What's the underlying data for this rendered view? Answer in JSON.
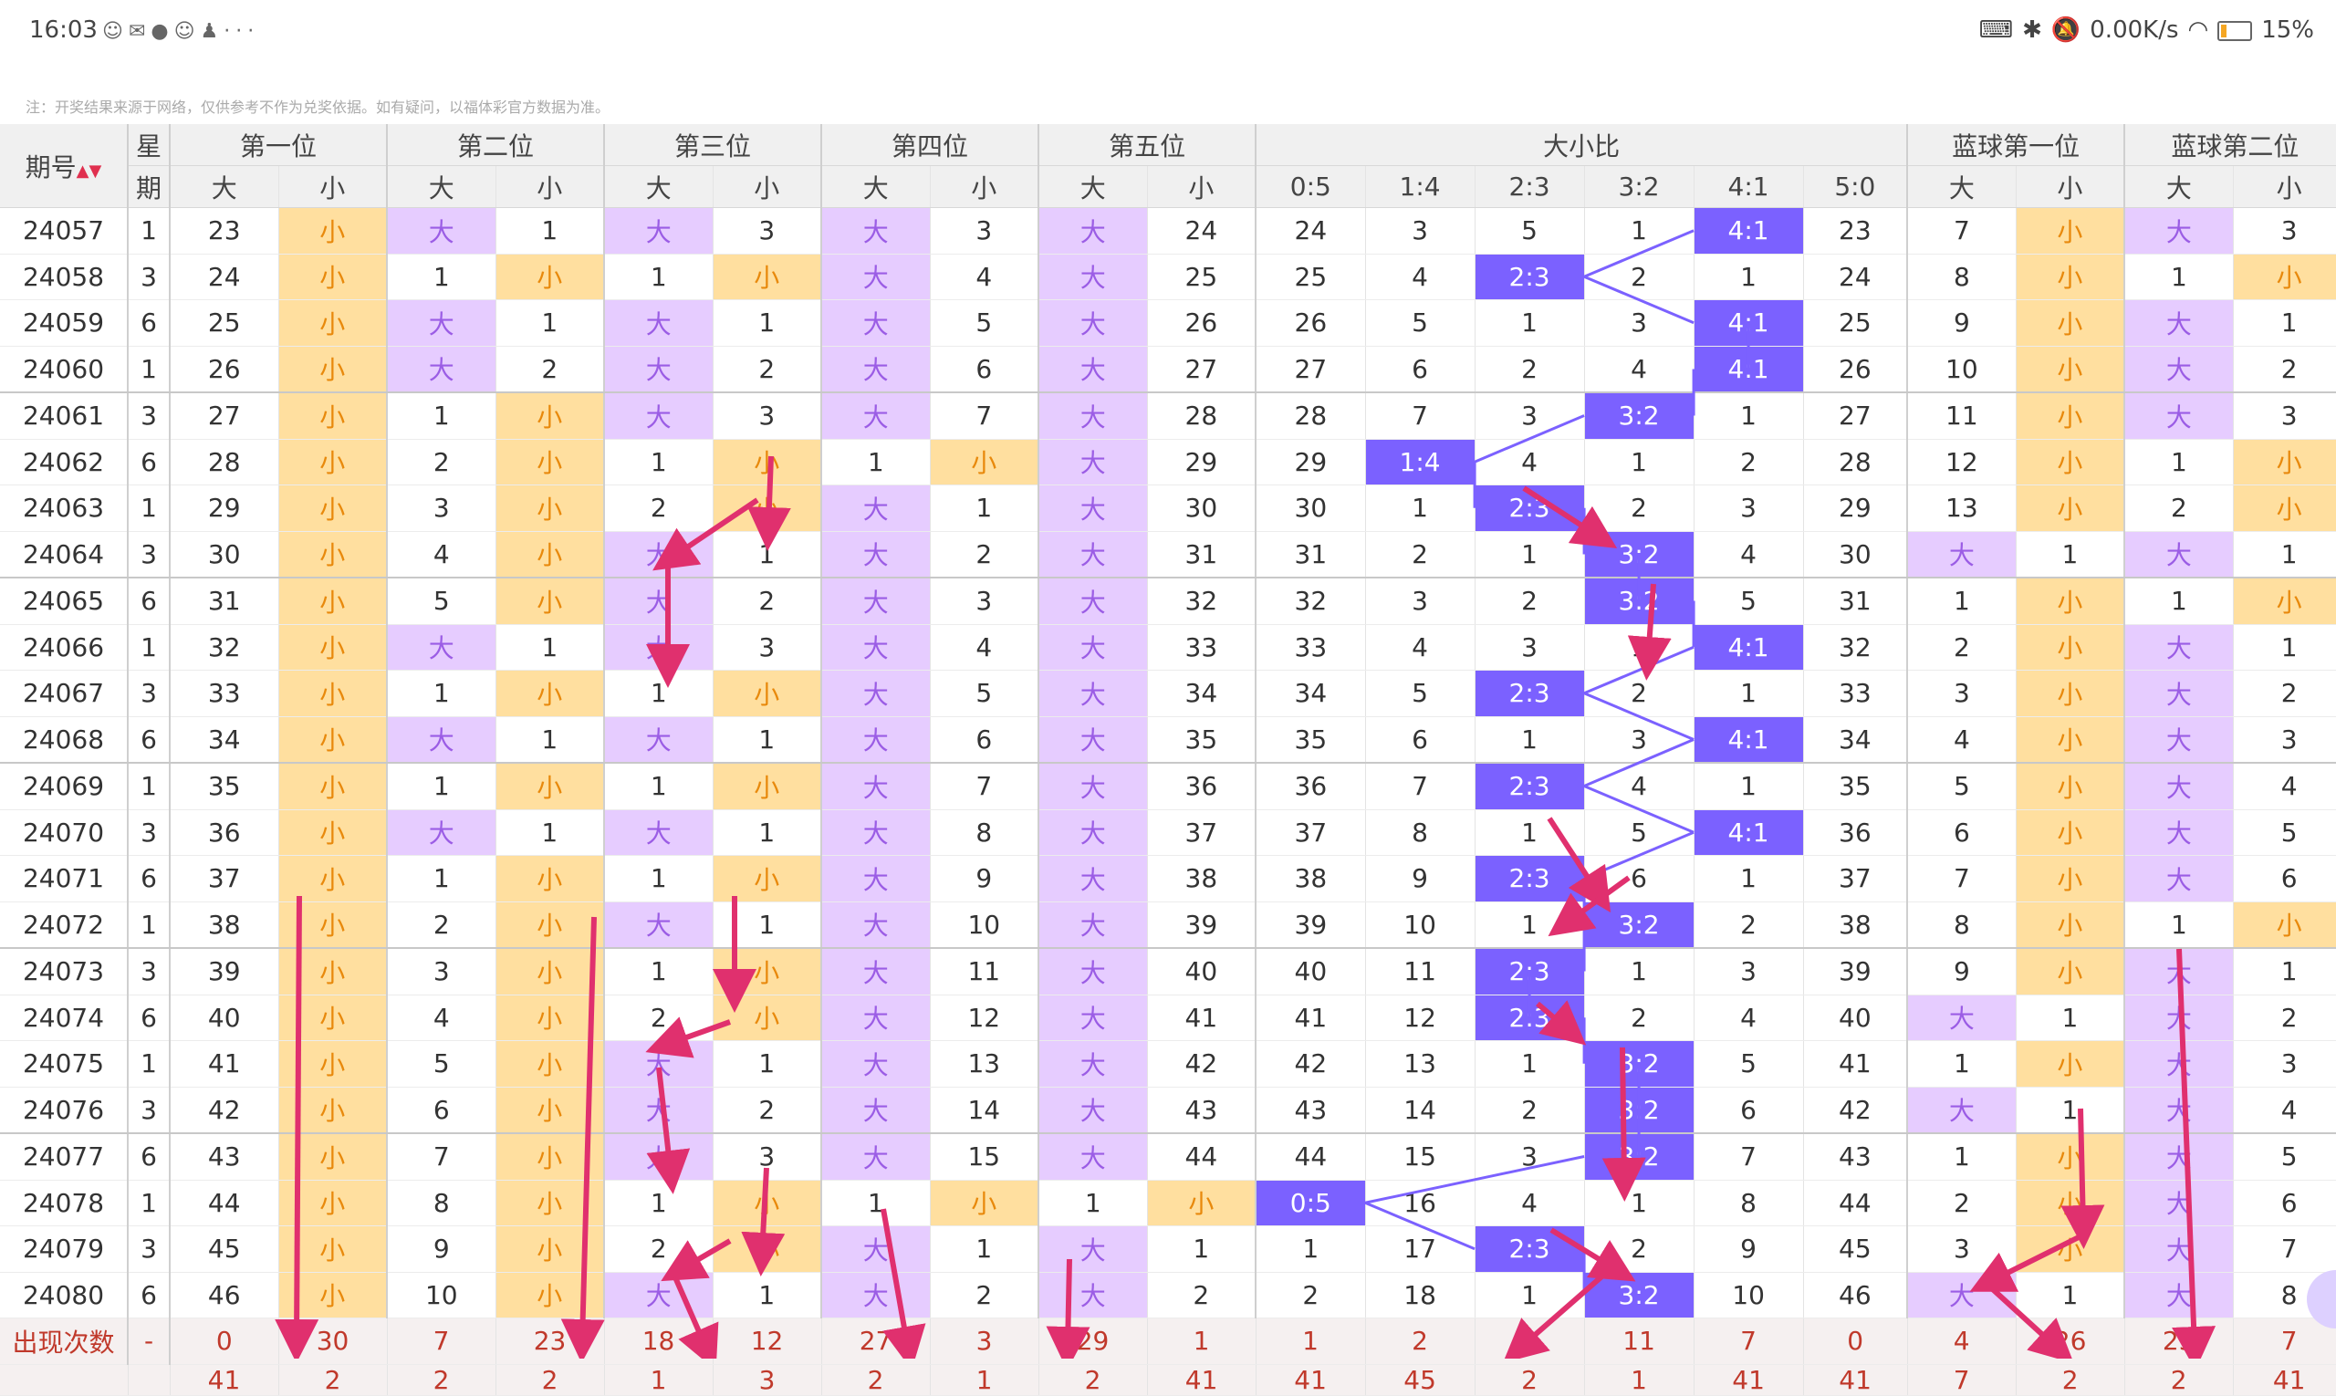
{
  "status": {
    "time": "16:03",
    "icons": [
      "chat-icon",
      "wechat-icon",
      "browser-icon",
      "chat-icon",
      "qq-icon",
      "more-icon"
    ],
    "more": "···",
    "net_speed": "0.00K/s",
    "battery": "15%"
  },
  "note": "注：开奖结果来源于网络，仅供参考不作为兑奖依据。如有疑问，以福体彩官方数据为准。",
  "header": {
    "issue": "期号",
    "week_top": "星",
    "week_bottom": "期",
    "groups": [
      "第一位",
      "第二位",
      "第三位",
      "第四位",
      "第五位",
      "大小比",
      "蓝球第一位",
      "蓝球第二位"
    ],
    "big": "大",
    "small": "小",
    "ratios": [
      "0:5",
      "1:4",
      "2:3",
      "3:2",
      "4:1",
      "5:0"
    ]
  },
  "colors": {
    "big_bg": "#e6ccff",
    "small_bg": "#ffdf9f",
    "ratio_hit": "#7b61ff",
    "arrow": "#e0306e"
  },
  "rows": [
    {
      "issue": "24057",
      "week": "1",
      "p1": [
        "23",
        "小"
      ],
      "p2": [
        "大",
        "1"
      ],
      "p3": [
        "大",
        "3"
      ],
      "p4": [
        "大",
        "3"
      ],
      "p5": [
        "大",
        "24"
      ],
      "ratio": [
        "24",
        "3",
        "5",
        "1",
        "4:1",
        "23"
      ],
      "b1": [
        "7",
        "小"
      ],
      "b2": [
        "大",
        "3"
      ]
    },
    {
      "issue": "24058",
      "week": "3",
      "p1": [
        "24",
        "小"
      ],
      "p2": [
        "1",
        "小"
      ],
      "p3": [
        "1",
        "小"
      ],
      "p4": [
        "大",
        "4"
      ],
      "p5": [
        "大",
        "25"
      ],
      "ratio": [
        "25",
        "4",
        "2:3",
        "2",
        "1",
        "24"
      ],
      "b1": [
        "8",
        "小"
      ],
      "b2": [
        "1",
        "小"
      ]
    },
    {
      "issue": "24059",
      "week": "6",
      "p1": [
        "25",
        "小"
      ],
      "p2": [
        "大",
        "1"
      ],
      "p3": [
        "大",
        "1"
      ],
      "p4": [
        "大",
        "5"
      ],
      "p5": [
        "大",
        "26"
      ],
      "ratio": [
        "26",
        "5",
        "1",
        "3",
        "4:1",
        "25"
      ],
      "b1": [
        "9",
        "小"
      ],
      "b2": [
        "大",
        "1"
      ]
    },
    {
      "issue": "24060",
      "week": "1",
      "p1": [
        "26",
        "小"
      ],
      "p2": [
        "大",
        "2"
      ],
      "p3": [
        "大",
        "2"
      ],
      "p4": [
        "大",
        "6"
      ],
      "p5": [
        "大",
        "27"
      ],
      "ratio": [
        "27",
        "6",
        "2",
        "4",
        "4:1",
        "26"
      ],
      "b1": [
        "10",
        "小"
      ],
      "b2": [
        "大",
        "2"
      ]
    },
    {
      "issue": "24061",
      "week": "3",
      "p1": [
        "27",
        "小"
      ],
      "p2": [
        "1",
        "小"
      ],
      "p3": [
        "大",
        "3"
      ],
      "p4": [
        "大",
        "7"
      ],
      "p5": [
        "大",
        "28"
      ],
      "ratio": [
        "28",
        "7",
        "3",
        "3:2",
        "1",
        "27"
      ],
      "b1": [
        "11",
        "小"
      ],
      "b2": [
        "大",
        "3"
      ]
    },
    {
      "issue": "24062",
      "week": "6",
      "p1": [
        "28",
        "小"
      ],
      "p2": [
        "2",
        "小"
      ],
      "p3": [
        "1",
        "小"
      ],
      "p4": [
        "1",
        "小"
      ],
      "p5": [
        "大",
        "29"
      ],
      "ratio": [
        "29",
        "1:4",
        "4",
        "1",
        "2",
        "28"
      ],
      "b1": [
        "12",
        "小"
      ],
      "b2": [
        "1",
        "小"
      ]
    },
    {
      "issue": "24063",
      "week": "1",
      "p1": [
        "29",
        "小"
      ],
      "p2": [
        "3",
        "小"
      ],
      "p3": [
        "2",
        "小"
      ],
      "p4": [
        "大",
        "1"
      ],
      "p5": [
        "大",
        "30"
      ],
      "ratio": [
        "30",
        "1",
        "2:3",
        "2",
        "3",
        "29"
      ],
      "b1": [
        "13",
        "小"
      ],
      "b2": [
        "2",
        "小"
      ]
    },
    {
      "issue": "24064",
      "week": "3",
      "p1": [
        "30",
        "小"
      ],
      "p2": [
        "4",
        "小"
      ],
      "p3": [
        "大",
        "1"
      ],
      "p4": [
        "大",
        "2"
      ],
      "p5": [
        "大",
        "31"
      ],
      "ratio": [
        "31",
        "2",
        "1",
        "3:2",
        "4",
        "30"
      ],
      "b1": [
        "大",
        "1"
      ],
      "b2": [
        "大",
        "1"
      ]
    },
    {
      "issue": "24065",
      "week": "6",
      "p1": [
        "31",
        "小"
      ],
      "p2": [
        "5",
        "小"
      ],
      "p3": [
        "大",
        "2"
      ],
      "p4": [
        "大",
        "3"
      ],
      "p5": [
        "大",
        "32"
      ],
      "ratio": [
        "32",
        "3",
        "2",
        "3:2",
        "5",
        "31"
      ],
      "b1": [
        "1",
        "小"
      ],
      "b2": [
        "1",
        "小"
      ]
    },
    {
      "issue": "24066",
      "week": "1",
      "p1": [
        "32",
        "小"
      ],
      "p2": [
        "大",
        "1"
      ],
      "p3": [
        "大",
        "3"
      ],
      "p4": [
        "大",
        "4"
      ],
      "p5": [
        "大",
        "33"
      ],
      "ratio": [
        "33",
        "4",
        "3",
        "1",
        "4:1",
        "32"
      ],
      "b1": [
        "2",
        "小"
      ],
      "b2": [
        "大",
        "1"
      ]
    },
    {
      "issue": "24067",
      "week": "3",
      "p1": [
        "33",
        "小"
      ],
      "p2": [
        "1",
        "小"
      ],
      "p3": [
        "1",
        "小"
      ],
      "p4": [
        "大",
        "5"
      ],
      "p5": [
        "大",
        "34"
      ],
      "ratio": [
        "34",
        "5",
        "2:3",
        "2",
        "1",
        "33"
      ],
      "b1": [
        "3",
        "小"
      ],
      "b2": [
        "大",
        "2"
      ]
    },
    {
      "issue": "24068",
      "week": "6",
      "p1": [
        "34",
        "小"
      ],
      "p2": [
        "大",
        "1"
      ],
      "p3": [
        "大",
        "1"
      ],
      "p4": [
        "大",
        "6"
      ],
      "p5": [
        "大",
        "35"
      ],
      "ratio": [
        "35",
        "6",
        "1",
        "3",
        "4:1",
        "34"
      ],
      "b1": [
        "4",
        "小"
      ],
      "b2": [
        "大",
        "3"
      ]
    },
    {
      "issue": "24069",
      "week": "1",
      "p1": [
        "35",
        "小"
      ],
      "p2": [
        "1",
        "小"
      ],
      "p3": [
        "1",
        "小"
      ],
      "p4": [
        "大",
        "7"
      ],
      "p5": [
        "大",
        "36"
      ],
      "ratio": [
        "36",
        "7",
        "2:3",
        "4",
        "1",
        "35"
      ],
      "b1": [
        "5",
        "小"
      ],
      "b2": [
        "大",
        "4"
      ]
    },
    {
      "issue": "24070",
      "week": "3",
      "p1": [
        "36",
        "小"
      ],
      "p2": [
        "大",
        "1"
      ],
      "p3": [
        "大",
        "1"
      ],
      "p4": [
        "大",
        "8"
      ],
      "p5": [
        "大",
        "37"
      ],
      "ratio": [
        "37",
        "8",
        "1",
        "5",
        "4:1",
        "36"
      ],
      "b1": [
        "6",
        "小"
      ],
      "b2": [
        "大",
        "5"
      ]
    },
    {
      "issue": "24071",
      "week": "6",
      "p1": [
        "37",
        "小"
      ],
      "p2": [
        "1",
        "小"
      ],
      "p3": [
        "1",
        "小"
      ],
      "p4": [
        "大",
        "9"
      ],
      "p5": [
        "大",
        "38"
      ],
      "ratio": [
        "38",
        "9",
        "2:3",
        "6",
        "1",
        "37"
      ],
      "b1": [
        "7",
        "小"
      ],
      "b2": [
        "大",
        "6"
      ]
    },
    {
      "issue": "24072",
      "week": "1",
      "p1": [
        "38",
        "小"
      ],
      "p2": [
        "2",
        "小"
      ],
      "p3": [
        "大",
        "1"
      ],
      "p4": [
        "大",
        "10"
      ],
      "p5": [
        "大",
        "39"
      ],
      "ratio": [
        "39",
        "10",
        "1",
        "3:2",
        "2",
        "38"
      ],
      "b1": [
        "8",
        "小"
      ],
      "b2": [
        "1",
        "小"
      ]
    },
    {
      "issue": "24073",
      "week": "3",
      "p1": [
        "39",
        "小"
      ],
      "p2": [
        "3",
        "小"
      ],
      "p3": [
        "1",
        "小"
      ],
      "p4": [
        "大",
        "11"
      ],
      "p5": [
        "大",
        "40"
      ],
      "ratio": [
        "40",
        "11",
        "2:3",
        "1",
        "3",
        "39"
      ],
      "b1": [
        "9",
        "小"
      ],
      "b2": [
        "大",
        "1"
      ]
    },
    {
      "issue": "24074",
      "week": "6",
      "p1": [
        "40",
        "小"
      ],
      "p2": [
        "4",
        "小"
      ],
      "p3": [
        "2",
        "小"
      ],
      "p4": [
        "大",
        "12"
      ],
      "p5": [
        "大",
        "41"
      ],
      "ratio": [
        "41",
        "12",
        "2:3",
        "2",
        "4",
        "40"
      ],
      "b1": [
        "大",
        "1"
      ],
      "b2": [
        "大",
        "2"
      ]
    },
    {
      "issue": "24075",
      "week": "1",
      "p1": [
        "41",
        "小"
      ],
      "p2": [
        "5",
        "小"
      ],
      "p3": [
        "大",
        "1"
      ],
      "p4": [
        "大",
        "13"
      ],
      "p5": [
        "大",
        "42"
      ],
      "ratio": [
        "42",
        "13",
        "1",
        "3:2",
        "5",
        "41"
      ],
      "b1": [
        "1",
        "小"
      ],
      "b2": [
        "大",
        "3"
      ]
    },
    {
      "issue": "24076",
      "week": "3",
      "p1": [
        "42",
        "小"
      ],
      "p2": [
        "6",
        "小"
      ],
      "p3": [
        "大",
        "2"
      ],
      "p4": [
        "大",
        "14"
      ],
      "p5": [
        "大",
        "43"
      ],
      "ratio": [
        "43",
        "14",
        "2",
        "3:2",
        "6",
        "42"
      ],
      "b1": [
        "大",
        "1"
      ],
      "b2": [
        "大",
        "4"
      ]
    },
    {
      "issue": "24077",
      "week": "6",
      "p1": [
        "43",
        "小"
      ],
      "p2": [
        "7",
        "小"
      ],
      "p3": [
        "大",
        "3"
      ],
      "p4": [
        "大",
        "15"
      ],
      "p5": [
        "大",
        "44"
      ],
      "ratio": [
        "44",
        "15",
        "3",
        "3:2",
        "7",
        "43"
      ],
      "b1": [
        "1",
        "小"
      ],
      "b2": [
        "大",
        "5"
      ]
    },
    {
      "issue": "24078",
      "week": "1",
      "p1": [
        "44",
        "小"
      ],
      "p2": [
        "8",
        "小"
      ],
      "p3": [
        "1",
        "小"
      ],
      "p4": [
        "1",
        "小"
      ],
      "p5": [
        "1",
        "小"
      ],
      "ratio": [
        "0:5",
        "16",
        "4",
        "1",
        "8",
        "44"
      ],
      "b1": [
        "2",
        "小"
      ],
      "b2": [
        "大",
        "6"
      ]
    },
    {
      "issue": "24079",
      "week": "3",
      "p1": [
        "45",
        "小"
      ],
      "p2": [
        "9",
        "小"
      ],
      "p3": [
        "2",
        "小"
      ],
      "p4": [
        "大",
        "1"
      ],
      "p5": [
        "大",
        "1"
      ],
      "ratio": [
        "1",
        "17",
        "2:3",
        "2",
        "9",
        "45"
      ],
      "b1": [
        "3",
        "小"
      ],
      "b2": [
        "大",
        "7"
      ]
    },
    {
      "issue": "24080",
      "week": "6",
      "p1": [
        "46",
        "小"
      ],
      "p2": [
        "10",
        "小"
      ],
      "p3": [
        "大",
        "1"
      ],
      "p4": [
        "大",
        "2"
      ],
      "p5": [
        "大",
        "2"
      ],
      "ratio": [
        "2",
        "18",
        "1",
        "3:2",
        "10",
        "46"
      ],
      "b1": [
        "大",
        "1"
      ],
      "b2": [
        "大",
        "8"
      ]
    }
  ],
  "summary": {
    "label": "出现次数",
    "week": "-",
    "values": [
      "0",
      "30",
      "7",
      "23",
      "18",
      "12",
      "27",
      "3",
      "29",
      "1",
      "1",
      "2",
      "9",
      "11",
      "7",
      "0",
      "4",
      "26",
      "23",
      "7"
    ]
  },
  "last_row": {
    "values": [
      "41",
      "2",
      "2",
      "2",
      "1",
      "3",
      "2",
      "1",
      "2",
      "41",
      "41",
      "45",
      "2",
      "1",
      "41",
      "41",
      "7",
      "2",
      "2",
      "41"
    ]
  }
}
